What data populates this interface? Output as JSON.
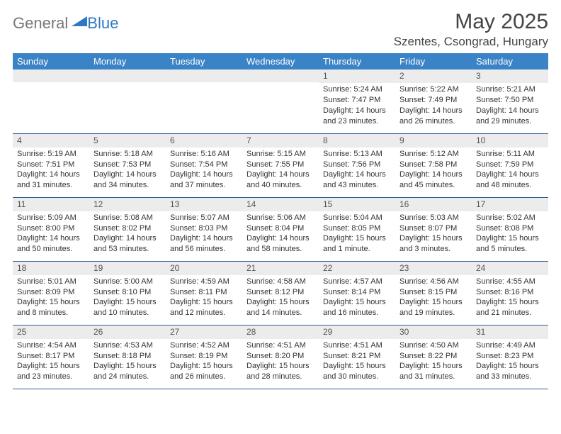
{
  "brand": {
    "part1": "General",
    "part2": "Blue",
    "text1_color": "#777777",
    "text2_color": "#2f79c2",
    "triangle_color": "#2f79c2"
  },
  "header": {
    "title": "May 2025",
    "location": "Szentes, Csongrad, Hungary",
    "title_color": "#444444",
    "title_fontsize": 30,
    "location_fontsize": 17
  },
  "calendar": {
    "header_bg": "#3a83c6",
    "header_text_color": "#ffffff",
    "daynum_bg": "#ececec",
    "row_border_color": "#2f5f95",
    "body_fontsize": 11,
    "daynum_fontsize": 12,
    "columns": [
      "Sunday",
      "Monday",
      "Tuesday",
      "Wednesday",
      "Thursday",
      "Friday",
      "Saturday"
    ],
    "weeks": [
      [
        {
          "n": "",
          "sr": "",
          "ss": "",
          "dl": ""
        },
        {
          "n": "",
          "sr": "",
          "ss": "",
          "dl": ""
        },
        {
          "n": "",
          "sr": "",
          "ss": "",
          "dl": ""
        },
        {
          "n": "",
          "sr": "",
          "ss": "",
          "dl": ""
        },
        {
          "n": "1",
          "sr": "Sunrise: 5:24 AM",
          "ss": "Sunset: 7:47 PM",
          "dl": "Daylight: 14 hours and 23 minutes."
        },
        {
          "n": "2",
          "sr": "Sunrise: 5:22 AM",
          "ss": "Sunset: 7:49 PM",
          "dl": "Daylight: 14 hours and 26 minutes."
        },
        {
          "n": "3",
          "sr": "Sunrise: 5:21 AM",
          "ss": "Sunset: 7:50 PM",
          "dl": "Daylight: 14 hours and 29 minutes."
        }
      ],
      [
        {
          "n": "4",
          "sr": "Sunrise: 5:19 AM",
          "ss": "Sunset: 7:51 PM",
          "dl": "Daylight: 14 hours and 31 minutes."
        },
        {
          "n": "5",
          "sr": "Sunrise: 5:18 AM",
          "ss": "Sunset: 7:53 PM",
          "dl": "Daylight: 14 hours and 34 minutes."
        },
        {
          "n": "6",
          "sr": "Sunrise: 5:16 AM",
          "ss": "Sunset: 7:54 PM",
          "dl": "Daylight: 14 hours and 37 minutes."
        },
        {
          "n": "7",
          "sr": "Sunrise: 5:15 AM",
          "ss": "Sunset: 7:55 PM",
          "dl": "Daylight: 14 hours and 40 minutes."
        },
        {
          "n": "8",
          "sr": "Sunrise: 5:13 AM",
          "ss": "Sunset: 7:56 PM",
          "dl": "Daylight: 14 hours and 43 minutes."
        },
        {
          "n": "9",
          "sr": "Sunrise: 5:12 AM",
          "ss": "Sunset: 7:58 PM",
          "dl": "Daylight: 14 hours and 45 minutes."
        },
        {
          "n": "10",
          "sr": "Sunrise: 5:11 AM",
          "ss": "Sunset: 7:59 PM",
          "dl": "Daylight: 14 hours and 48 minutes."
        }
      ],
      [
        {
          "n": "11",
          "sr": "Sunrise: 5:09 AM",
          "ss": "Sunset: 8:00 PM",
          "dl": "Daylight: 14 hours and 50 minutes."
        },
        {
          "n": "12",
          "sr": "Sunrise: 5:08 AM",
          "ss": "Sunset: 8:02 PM",
          "dl": "Daylight: 14 hours and 53 minutes."
        },
        {
          "n": "13",
          "sr": "Sunrise: 5:07 AM",
          "ss": "Sunset: 8:03 PM",
          "dl": "Daylight: 14 hours and 56 minutes."
        },
        {
          "n": "14",
          "sr": "Sunrise: 5:06 AM",
          "ss": "Sunset: 8:04 PM",
          "dl": "Daylight: 14 hours and 58 minutes."
        },
        {
          "n": "15",
          "sr": "Sunrise: 5:04 AM",
          "ss": "Sunset: 8:05 PM",
          "dl": "Daylight: 15 hours and 1 minute."
        },
        {
          "n": "16",
          "sr": "Sunrise: 5:03 AM",
          "ss": "Sunset: 8:07 PM",
          "dl": "Daylight: 15 hours and 3 minutes."
        },
        {
          "n": "17",
          "sr": "Sunrise: 5:02 AM",
          "ss": "Sunset: 8:08 PM",
          "dl": "Daylight: 15 hours and 5 minutes."
        }
      ],
      [
        {
          "n": "18",
          "sr": "Sunrise: 5:01 AM",
          "ss": "Sunset: 8:09 PM",
          "dl": "Daylight: 15 hours and 8 minutes."
        },
        {
          "n": "19",
          "sr": "Sunrise: 5:00 AM",
          "ss": "Sunset: 8:10 PM",
          "dl": "Daylight: 15 hours and 10 minutes."
        },
        {
          "n": "20",
          "sr": "Sunrise: 4:59 AM",
          "ss": "Sunset: 8:11 PM",
          "dl": "Daylight: 15 hours and 12 minutes."
        },
        {
          "n": "21",
          "sr": "Sunrise: 4:58 AM",
          "ss": "Sunset: 8:12 PM",
          "dl": "Daylight: 15 hours and 14 minutes."
        },
        {
          "n": "22",
          "sr": "Sunrise: 4:57 AM",
          "ss": "Sunset: 8:14 PM",
          "dl": "Daylight: 15 hours and 16 minutes."
        },
        {
          "n": "23",
          "sr": "Sunrise: 4:56 AM",
          "ss": "Sunset: 8:15 PM",
          "dl": "Daylight: 15 hours and 19 minutes."
        },
        {
          "n": "24",
          "sr": "Sunrise: 4:55 AM",
          "ss": "Sunset: 8:16 PM",
          "dl": "Daylight: 15 hours and 21 minutes."
        }
      ],
      [
        {
          "n": "25",
          "sr": "Sunrise: 4:54 AM",
          "ss": "Sunset: 8:17 PM",
          "dl": "Daylight: 15 hours and 23 minutes."
        },
        {
          "n": "26",
          "sr": "Sunrise: 4:53 AM",
          "ss": "Sunset: 8:18 PM",
          "dl": "Daylight: 15 hours and 24 minutes."
        },
        {
          "n": "27",
          "sr": "Sunrise: 4:52 AM",
          "ss": "Sunset: 8:19 PM",
          "dl": "Daylight: 15 hours and 26 minutes."
        },
        {
          "n": "28",
          "sr": "Sunrise: 4:51 AM",
          "ss": "Sunset: 8:20 PM",
          "dl": "Daylight: 15 hours and 28 minutes."
        },
        {
          "n": "29",
          "sr": "Sunrise: 4:51 AM",
          "ss": "Sunset: 8:21 PM",
          "dl": "Daylight: 15 hours and 30 minutes."
        },
        {
          "n": "30",
          "sr": "Sunrise: 4:50 AM",
          "ss": "Sunset: 8:22 PM",
          "dl": "Daylight: 15 hours and 31 minutes."
        },
        {
          "n": "31",
          "sr": "Sunrise: 4:49 AM",
          "ss": "Sunset: 8:23 PM",
          "dl": "Daylight: 15 hours and 33 minutes."
        }
      ]
    ]
  }
}
